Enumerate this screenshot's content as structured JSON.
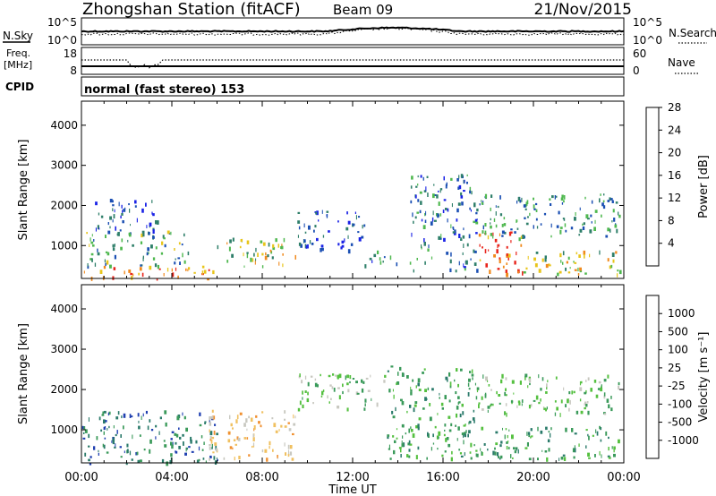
{
  "header": {
    "station": "Zhongshan Station (fitACF)",
    "beam": "Beam 09",
    "date": "21/Nov/2015"
  },
  "noise_panel": {
    "left_label": "N.Sky",
    "left_ticks": [
      "10^5",
      "10^0"
    ],
    "right_label": "N.Search",
    "right_ticks": [
      "10^5",
      "10^0"
    ]
  },
  "freq_panel": {
    "left_label_1": "Freq.",
    "left_label_2": "[MHz]",
    "left_ticks": [
      "18",
      "8"
    ],
    "right_label": "Nave",
    "right_ticks": [
      "60",
      "0"
    ]
  },
  "cpid": {
    "label": "CPID",
    "mode": "normal (fast stereo) 153"
  },
  "x_axis": {
    "title": "Time UT",
    "ticks": [
      "00:00",
      "04:00",
      "08:00",
      "12:00",
      "16:00",
      "20:00",
      "00:00"
    ]
  },
  "chart_data": [
    {
      "type": "heatmap",
      "variable": "power",
      "ylabel": "Slant Range [km]",
      "yticks": [
        1000,
        2000,
        3000,
        4000
      ],
      "ylim": [
        180,
        4600
      ],
      "xlim_hours": [
        0,
        24
      ],
      "colorbar_label": "Power [dB]",
      "colorbar_ticks": [
        4,
        8,
        12,
        16,
        20,
        24,
        28
      ],
      "colorbar_colors": [
        "#1a22e6",
        "#1b4fb3",
        "#2f7f6a",
        "#4fb84f",
        "#e8c51a",
        "#f08a1e",
        "#e8231a"
      ],
      "scatter_regions": [
        {
          "t0": 0.0,
          "t1": 6.0,
          "r0": 180,
          "r1": 500,
          "value": 24
        },
        {
          "t0": 0.2,
          "t1": 4.8,
          "r0": 500,
          "r1": 1400,
          "value": 14
        },
        {
          "t0": 0.5,
          "t1": 3.5,
          "r0": 1400,
          "r1": 2200,
          "value": 8
        },
        {
          "t0": 6.0,
          "t1": 9.5,
          "r0": 500,
          "r1": 1200,
          "value": 18
        },
        {
          "t0": 9.5,
          "t1": 12.5,
          "r0": 900,
          "r1": 1900,
          "value": 8
        },
        {
          "t0": 12.5,
          "t1": 14.0,
          "r0": 500,
          "r1": 900,
          "value": 10
        },
        {
          "t0": 14.5,
          "t1": 17.5,
          "r0": 400,
          "r1": 2800,
          "value": 10
        },
        {
          "t0": 17.5,
          "t1": 19.5,
          "r0": 300,
          "r1": 1400,
          "value": 26
        },
        {
          "t0": 19.5,
          "t1": 23.8,
          "r0": 300,
          "r1": 900,
          "value": 18
        },
        {
          "t0": 17.5,
          "t1": 23.8,
          "r0": 1200,
          "r1": 2300,
          "value": 12
        }
      ]
    },
    {
      "type": "heatmap",
      "variable": "velocity",
      "ylabel": "Slant Range [km]",
      "yticks": [
        1000,
        2000,
        3000,
        4000
      ],
      "ylim": [
        180,
        4600
      ],
      "xlim_hours": [
        0,
        24
      ],
      "colorbar_label": "Velocity [m s⁻¹]",
      "colorbar_ticks": [
        "1000",
        "500",
        "100",
        "25",
        "-25",
        "-100",
        "-500",
        "-1000"
      ],
      "colorbar_colors": [
        "#1f3fb0",
        "#2a7a6a",
        "#3a9a5a",
        "#55c040",
        "#c8c8c0",
        "#f0c060",
        "#f09030",
        "#f06020",
        "#e02020"
      ],
      "scatter_regions": [
        {
          "t0": 0.0,
          "t1": 6.0,
          "r0": 180,
          "r1": 1500,
          "value": 500
        },
        {
          "t0": 5.5,
          "t1": 9.5,
          "r0": 300,
          "r1": 1500,
          "value": -300
        },
        {
          "t0": 9.5,
          "t1": 13.5,
          "r0": 1500,
          "r1": 2400,
          "value": 0
        },
        {
          "t0": 13.5,
          "t1": 17.5,
          "r0": 300,
          "r1": 2600,
          "value": 100
        },
        {
          "t0": 17.5,
          "t1": 23.8,
          "r0": 300,
          "r1": 1100,
          "value": 100
        },
        {
          "t0": 17.5,
          "t1": 23.8,
          "r0": 1400,
          "r1": 2400,
          "value": 0
        }
      ]
    }
  ],
  "colors": {
    "axes": "#000000",
    "background": "#ffffff"
  }
}
